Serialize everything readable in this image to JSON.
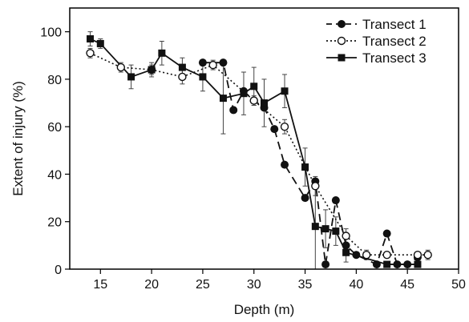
{
  "chart_data": {
    "type": "line",
    "title": "",
    "xlabel": "Depth (m)",
    "ylabel": "Extent of injury (%)",
    "xlim": [
      12,
      50
    ],
    "ylim": [
      0,
      110
    ],
    "xticks": [
      15,
      20,
      25,
      30,
      35,
      40,
      45,
      50
    ],
    "yticks": [
      0,
      20,
      40,
      60,
      80,
      100
    ],
    "legend_position": "top-right",
    "series": [
      {
        "name": "Transect 1",
        "line_style": "dashed",
        "marker": "filled-circle",
        "points": [
          {
            "x": 25,
            "y": 87
          },
          {
            "x": 27,
            "y": 87
          },
          {
            "x": 28,
            "y": 67
          },
          {
            "x": 29,
            "y": 75
          },
          {
            "x": 30,
            "y": 71
          },
          {
            "x": 31,
            "y": 68
          },
          {
            "x": 32,
            "y": 59
          },
          {
            "x": 33,
            "y": 44
          },
          {
            "x": 35,
            "y": 30
          },
          {
            "x": 36,
            "y": 37
          },
          {
            "x": 37,
            "y": 2
          },
          {
            "x": 38,
            "y": 29
          },
          {
            "x": 39,
            "y": 10
          },
          {
            "x": 40,
            "y": 6
          },
          {
            "x": 42,
            "y": 2
          },
          {
            "x": 43,
            "y": 15
          },
          {
            "x": 44,
            "y": 2
          },
          {
            "x": 45,
            "y": 2
          },
          {
            "x": 46,
            "y": 5
          }
        ]
      },
      {
        "name": "Transect 2",
        "line_style": "dotted",
        "marker": "open-circle",
        "points": [
          {
            "x": 14,
            "y": 91,
            "err": 2
          },
          {
            "x": 17,
            "y": 85,
            "err": 2
          },
          {
            "x": 20,
            "y": 84,
            "err": 2
          },
          {
            "x": 23,
            "y": 81,
            "err": 3
          },
          {
            "x": 26,
            "y": 86,
            "err": 2
          },
          {
            "x": 30,
            "y": 71,
            "err": 2
          },
          {
            "x": 33,
            "y": 60,
            "err": 3
          },
          {
            "x": 36,
            "y": 35,
            "err": 4
          },
          {
            "x": 39,
            "y": 14,
            "err": 3
          },
          {
            "x": 41,
            "y": 6,
            "err": 2
          },
          {
            "x": 43,
            "y": 6
          },
          {
            "x": 46,
            "y": 6
          },
          {
            "x": 47,
            "y": 6,
            "err": 2
          }
        ]
      },
      {
        "name": "Transect 3",
        "line_style": "solid",
        "marker": "filled-square",
        "points": [
          {
            "x": 14,
            "y": 97,
            "err": 3
          },
          {
            "x": 15,
            "y": 95,
            "err": 2
          },
          {
            "x": 18,
            "y": 81,
            "err": 5
          },
          {
            "x": 20,
            "y": 84,
            "err": 3
          },
          {
            "x": 21,
            "y": 91,
            "err": 5
          },
          {
            "x": 23,
            "y": 85,
            "err": 4
          },
          {
            "x": 25,
            "y": 81,
            "err": 6
          },
          {
            "x": 27,
            "y": 72,
            "err": 15
          },
          {
            "x": 29,
            "y": 74,
            "err": 9
          },
          {
            "x": 30,
            "y": 77,
            "err": 8
          },
          {
            "x": 31,
            "y": 70,
            "err": 10
          },
          {
            "x": 33,
            "y": 75,
            "err": 7
          },
          {
            "x": 35,
            "y": 43,
            "err": 8
          },
          {
            "x": 36,
            "y": 18,
            "err": 18
          },
          {
            "x": 37,
            "y": 17,
            "err": 8
          },
          {
            "x": 38,
            "y": 16,
            "err": 6
          },
          {
            "x": 39,
            "y": 7,
            "err": 4
          },
          {
            "x": 43,
            "y": 2
          },
          {
            "x": 46,
            "y": 2
          }
        ]
      }
    ]
  }
}
